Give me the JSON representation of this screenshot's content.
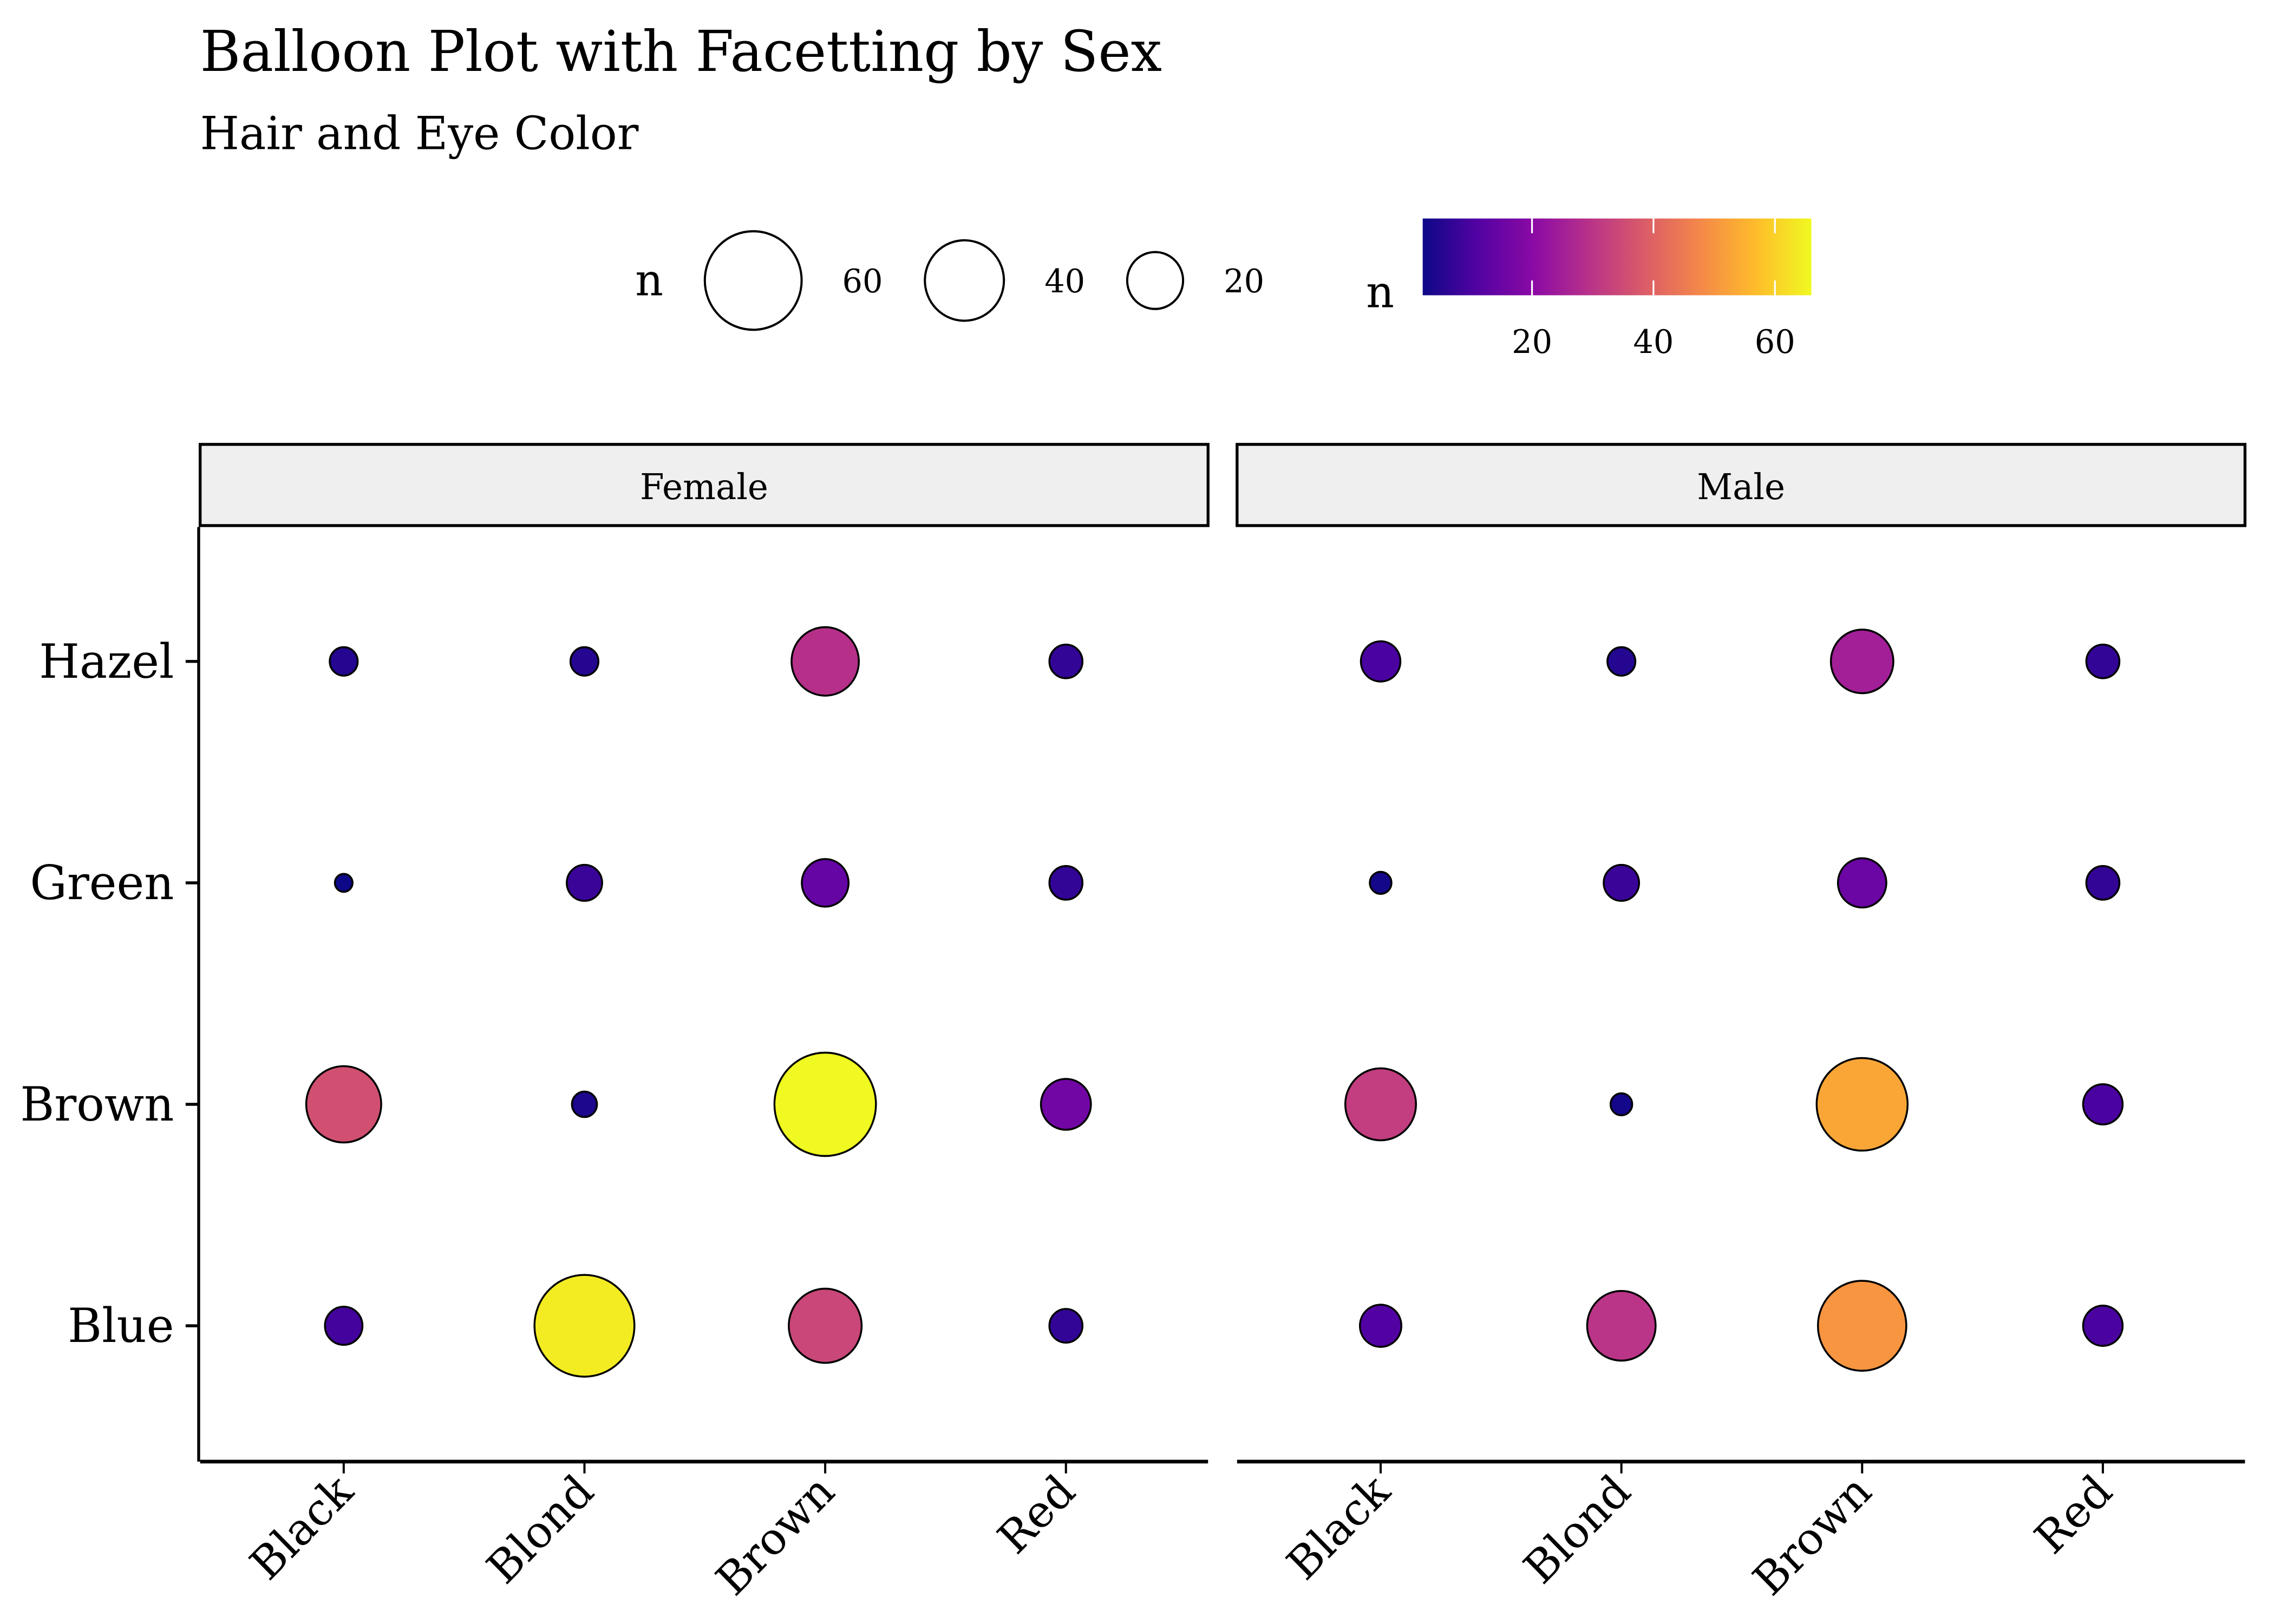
{
  "chart_data": {
    "type": "scatter",
    "subtype": "balloon",
    "title": "Balloon Plot with Facetting by Sex",
    "subtitle": "Hair and Eye Color",
    "xlabel": "",
    "ylabel": "",
    "x_categories": [
      "Black",
      "Blond",
      "Brown",
      "Red"
    ],
    "y_categories": [
      "Blue",
      "Brown",
      "Green",
      "Hazel"
    ],
    "facets": [
      {
        "name": "Female",
        "points": [
          {
            "hair": "Black",
            "eye": "Hazel",
            "n": 5
          },
          {
            "hair": "Blond",
            "eye": "Hazel",
            "n": 5
          },
          {
            "hair": "Brown",
            "eye": "Hazel",
            "n": 29
          },
          {
            "hair": "Red",
            "eye": "Hazel",
            "n": 7
          },
          {
            "hair": "Black",
            "eye": "Green",
            "n": 2
          },
          {
            "hair": "Blond",
            "eye": "Green",
            "n": 8
          },
          {
            "hair": "Brown",
            "eye": "Green",
            "n": 14
          },
          {
            "hair": "Red",
            "eye": "Green",
            "n": 7
          },
          {
            "hair": "Black",
            "eye": "Brown",
            "n": 36
          },
          {
            "hair": "Blond",
            "eye": "Brown",
            "n": 4
          },
          {
            "hair": "Brown",
            "eye": "Brown",
            "n": 66
          },
          {
            "hair": "Red",
            "eye": "Brown",
            "n": 16
          },
          {
            "hair": "Black",
            "eye": "Blue",
            "n": 9
          },
          {
            "hair": "Blond",
            "eye": "Blue",
            "n": 64
          },
          {
            "hair": "Brown",
            "eye": "Blue",
            "n": 34
          },
          {
            "hair": "Red",
            "eye": "Blue",
            "n": 7
          }
        ]
      },
      {
        "name": "Male",
        "points": [
          {
            "hair": "Black",
            "eye": "Hazel",
            "n": 10
          },
          {
            "hair": "Blond",
            "eye": "Hazel",
            "n": 5
          },
          {
            "hair": "Brown",
            "eye": "Hazel",
            "n": 25
          },
          {
            "hair": "Red",
            "eye": "Hazel",
            "n": 7
          },
          {
            "hair": "Black",
            "eye": "Green",
            "n": 3
          },
          {
            "hair": "Blond",
            "eye": "Green",
            "n": 8
          },
          {
            "hair": "Brown",
            "eye": "Green",
            "n": 15
          },
          {
            "hair": "Red",
            "eye": "Green",
            "n": 7
          },
          {
            "hair": "Black",
            "eye": "Brown",
            "n": 32
          },
          {
            "hair": "Blond",
            "eye": "Brown",
            "n": 3
          },
          {
            "hair": "Brown",
            "eye": "Brown",
            "n": 53
          },
          {
            "hair": "Red",
            "eye": "Brown",
            "n": 10
          },
          {
            "hair": "Black",
            "eye": "Blue",
            "n": 11
          },
          {
            "hair": "Blond",
            "eye": "Blue",
            "n": 30
          },
          {
            "hair": "Brown",
            "eye": "Blue",
            "n": 50
          },
          {
            "hair": "Red",
            "eye": "Blue",
            "n": 10
          }
        ]
      }
    ],
    "size_legend": {
      "title": "n",
      "breaks": [
        60,
        40,
        20
      ]
    },
    "color_legend": {
      "title": "n",
      "breaks": [
        20,
        40,
        60
      ],
      "range": [
        2,
        66
      ],
      "palette": "plasma",
      "stops": [
        "#0d0887",
        "#5302a3",
        "#8b0aa5",
        "#b83289",
        "#db5c68",
        "#f48849",
        "#febc2a",
        "#f0f921"
      ]
    },
    "legend_position": "top",
    "grid": false,
    "point_outline": "#000000",
    "strip_fill": "#efefef"
  }
}
